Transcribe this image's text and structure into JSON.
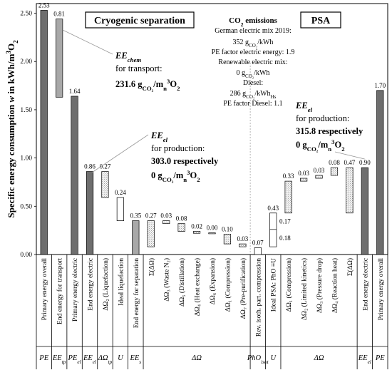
{
  "chart_data": {
    "type": "bar",
    "ylabel": "Specific energy consumption w in kWh/m³O₂",
    "ylabel_parts": [
      "Specific energy consumption ",
      "w",
      " in kWh/m",
      "3",
      "O",
      "2"
    ],
    "ylim": [
      0,
      2.6
    ],
    "yticks": [
      "0.00",
      "0.50",
      "1.00",
      "1.50",
      "2.00",
      "2.50"
    ],
    "ytick_values": [
      0,
      0.5,
      1.0,
      1.5,
      2.0,
      2.5
    ],
    "grid": false,
    "legend": "none",
    "colors": {
      "dark": "#6e6e6e",
      "light": "#a8a8a8",
      "white": "#ffffff",
      "dotted": "#d9d9d9",
      "axis": "#000000"
    },
    "bars": [
      {
        "label": "Primary energy overall",
        "group": "cryo",
        "style": "dark",
        "base": 0,
        "top": 2.53,
        "value_label": "2.53"
      },
      {
        "label": "End energy for transport",
        "group": "cryo",
        "style": "light",
        "base": 1.63,
        "top": 2.44,
        "value_label": "0.81"
      },
      {
        "label": "Primary energy electric",
        "group": "cryo",
        "style": "dark",
        "base": 0,
        "top": 1.64,
        "value_label": "1.64"
      },
      {
        "label": "End energy electric",
        "group": "cryo",
        "style": "dark",
        "base": 0,
        "top": 0.86,
        "value_label": "0.86"
      },
      {
        "label": "ΔΩ₂ (Liquefaction)",
        "group": "cryo",
        "style": "dotted",
        "base": 0.59,
        "top": 0.86,
        "value_label": "0.27"
      },
      {
        "label": "Ideal liquefaction",
        "group": "cryo",
        "style": "white",
        "base": 0.35,
        "top": 0.59,
        "value_label": "0.24"
      },
      {
        "label": "End energy for separation",
        "group": "cryo",
        "style": "light",
        "base": 0,
        "top": 0.35,
        "value_label": "0.35"
      },
      {
        "label": "Σ(ΔΩ)",
        "group": "cryo",
        "style": "dotted",
        "base": 0.08,
        "top": 0.35,
        "value_label": "0.27"
      },
      {
        "label": "ΔΩ₃ (Waste N₂)",
        "group": "cryo",
        "style": "dotted",
        "base": 0.32,
        "top": 0.35,
        "value_label": "0.03"
      },
      {
        "label": "ΔΩ₅ (Distillation)",
        "group": "cryo",
        "style": "dotted",
        "base": 0.24,
        "top": 0.32,
        "value_label": "0.08"
      },
      {
        "label": "ΔΩ₄ (Heat exchange)",
        "group": "cryo",
        "style": "dotted",
        "base": 0.22,
        "top": 0.24,
        "value_label": "0.02"
      },
      {
        "label": "ΔΩ₆ (Expansion)",
        "group": "cryo",
        "style": "dotted",
        "base": 0.215,
        "top": 0.225,
        "value_label": "0.00"
      },
      {
        "label": "ΔΩ₁ (Compression)",
        "group": "cryo",
        "style": "dotted",
        "base": 0.11,
        "top": 0.21,
        "value_label": "0.10"
      },
      {
        "label": "ΔΩ₇ (Pre-purification)",
        "group": "cryo",
        "style": "dotted",
        "base": 0.08,
        "top": 0.11,
        "value_label": "0.03"
      },
      {
        "label": "Rev. isoth. part. compression",
        "group": "mid",
        "style": "white",
        "base": 0,
        "top": 0.07,
        "value_label": "0.07"
      },
      {
        "label": "Ideal PSA: PhO ≡U",
        "group": "psa",
        "style": "white",
        "base": 0.08,
        "top": 0.43,
        "value_label": "0.43",
        "split": 0.26,
        "split_labels": [
          "0.17",
          "0.18"
        ]
      },
      {
        "label": "ΔΩ₁ (Compression)",
        "group": "psa",
        "style": "dotted",
        "base": 0.43,
        "top": 0.76,
        "value_label": "0.33"
      },
      {
        "label": "ΔΩ₂ (Limited kinetics)",
        "group": "psa",
        "style": "dotted",
        "base": 0.76,
        "top": 0.79,
        "value_label": "0.03"
      },
      {
        "label": "ΔΩ₃ (Pressure drop)",
        "group": "psa",
        "style": "dotted",
        "base": 0.79,
        "top": 0.82,
        "value_label": "0.03"
      },
      {
        "label": "ΔΩ₄ (Reaction heat)",
        "group": "psa",
        "style": "dotted",
        "base": 0.82,
        "top": 0.9,
        "value_label": "0.08"
      },
      {
        "label": "Σ(ΔΩ)",
        "group": "psa",
        "style": "dotted",
        "base": 0.43,
        "top": 0.9,
        "value_label": "0.47"
      },
      {
        "label": "End energy electric",
        "group": "psa",
        "style": "dark",
        "base": 0,
        "top": 0.9,
        "value_label": "0.90"
      },
      {
        "label": "Primary energy overall",
        "group": "psa",
        "style": "dark",
        "base": 0,
        "top": 1.7,
        "value_label": "1.70"
      }
    ],
    "category_groups": [
      {
        "label": "PE",
        "from": 0,
        "to": 0
      },
      {
        "label": "EE",
        "sub": "tp",
        "from": 1,
        "to": 1
      },
      {
        "label": "PE",
        "sub": "el",
        "from": 2,
        "to": 2
      },
      {
        "label": "EE",
        "sub": "el",
        "from": 3,
        "to": 3
      },
      {
        "label": "ΔΩ",
        "sub": "tp",
        "from": 4,
        "to": 4
      },
      {
        "label": "U",
        "from": 5,
        "to": 5
      },
      {
        "label": "EE",
        "sub": "s",
        "from": 6,
        "to": 6
      },
      {
        "label": "ΔΩ",
        "from": 7,
        "to": 13
      },
      {
        "label": "PhO",
        "sub": "isot",
        "from": 14,
        "to": 14
      },
      {
        "label": "U",
        "from": 15,
        "to": 15
      },
      {
        "label": "ΔΩ",
        "from": 16,
        "to": 20
      },
      {
        "label": "EE",
        "sub": "el",
        "from": 21,
        "to": 21
      },
      {
        "label": "PE",
        "from": 22,
        "to": 22
      }
    ],
    "annotations": {
      "cryo_title": "Cryogenic separation",
      "psa_title": "PSA",
      "co2_title": "CO₂ emissions",
      "co2_lines": [
        "German electric mix 2019:",
        "352 g_CO₂/kWh",
        "PE factor electric energy: 1.9",
        "Renewable electric mix:",
        "0 g_CO₂/kWh",
        "Diesel:",
        "286 g_CO₂/kWh_Hs",
        "PE factor Diesel: 1.1"
      ],
      "ee_chem_label": "EE_chem",
      "ee_chem_line1": "for transport:",
      "ee_chem_line2": "231.6 g_CO₂/m_n³O₂",
      "ee_el_cryo_label": "EE_el",
      "ee_el_cryo_line1": "for production:",
      "ee_el_cryo_line2": "303.0 respectively",
      "ee_el_cryo_line3": "0 g_CO₂/m_n³O₂",
      "ee_el_psa_label": "EE_el",
      "ee_el_psa_line1": "for production:",
      "ee_el_psa_line2": "315.8 respectively",
      "ee_el_psa_line3": "0 g_CO₂/m_n³O₂"
    }
  }
}
